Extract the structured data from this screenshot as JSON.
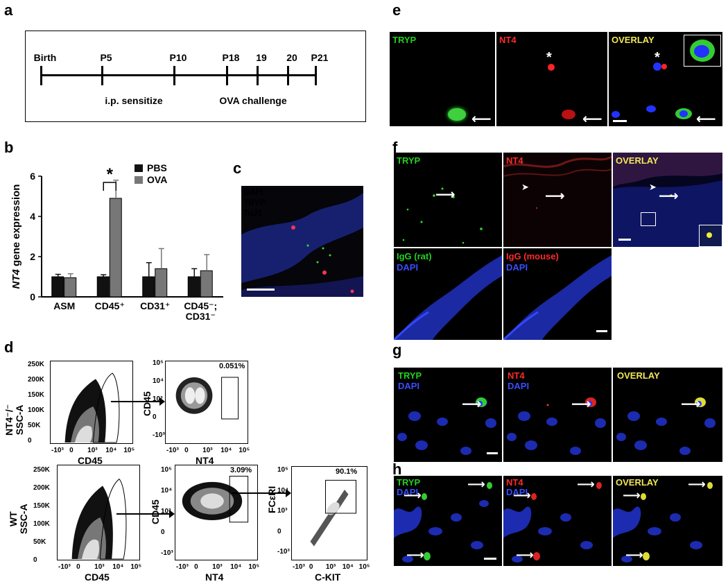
{
  "panels": {
    "a": "a",
    "b": "b",
    "c": "c",
    "d": "d",
    "e": "e",
    "f": "f",
    "g": "g",
    "h": "h"
  },
  "timeline": {
    "points": [
      {
        "label": "Birth",
        "pos": 0
      },
      {
        "label": "P5",
        "pos": 1
      },
      {
        "label": "P10",
        "pos": 2
      },
      {
        "label": "P18",
        "pos": 3
      },
      {
        "label": "19",
        "pos": 4
      },
      {
        "label": "20",
        "pos": 5
      },
      {
        "label": "P21",
        "pos": 6
      }
    ],
    "sensitize_label": "i.p. sensitize",
    "challenge_label": "OVA challenge"
  },
  "chart_data": {
    "type": "bar",
    "categories": [
      "ASM",
      "CD45+",
      "CD31+",
      "CD45-; CD31-"
    ],
    "category_display": [
      [
        "ASM"
      ],
      [
        "CD45⁺"
      ],
      [
        "CD31⁺"
      ],
      [
        "CD45⁻;",
        "CD31⁻"
      ]
    ],
    "ylabel": "NT4 gene expression",
    "ylabel_italic": "NT4",
    "ylabel_rest": " gene expression",
    "ylim": [
      0,
      6
    ],
    "yticks": [
      0,
      2,
      4,
      6
    ],
    "series": [
      {
        "name": "PBS",
        "color": "#111111",
        "values": [
          1.0,
          1.0,
          1.0,
          1.0
        ],
        "errors": [
          0.12,
          0.1,
          0.7,
          0.4
        ]
      },
      {
        "name": "OVA",
        "color": "#777777",
        "values": [
          0.95,
          4.9,
          1.4,
          1.3
        ],
        "errors": [
          0.2,
          0.9,
          1.0,
          0.8
        ]
      }
    ],
    "significance": {
      "category": "CD45+",
      "marker": "*"
    }
  },
  "panel_c": {
    "labels": [
      {
        "text": "DAPI",
        "color": "#3a4dff"
      },
      {
        "text": "TRYP",
        "color": "#ff3a5a"
      },
      {
        "text": "TuJ1",
        "color": "#22d022"
      }
    ]
  },
  "panel_d": {
    "top_row_label": "NT4-/- SSC-A",
    "top_row_label_display": [
      "NT4⁻/⁻",
      "SSC-A"
    ],
    "bottom_row_label_display": [
      "WT",
      "SSC-A"
    ],
    "ssc_ticks": [
      "250K",
      "200K",
      "150K",
      "100K",
      "50K",
      "0"
    ],
    "ssc_ticks_top": [
      "250K",
      "200K",
      "150K",
      "100K",
      "50K",
      "0"
    ],
    "log_ticks_x": [
      "-10³",
      "0",
      "10³",
      "10⁴",
      "10⁵"
    ],
    "log_ticks_y": [
      "10⁵",
      "10⁴",
      "10³",
      "0",
      "-10³"
    ],
    "x_cd45": "CD45",
    "x_nt4": "NT4",
    "y_cd45": "CD45",
    "x_ckit": "C-KIT",
    "y_fceri": "FCεRI",
    "pct_top": "0.051%",
    "pct_wt_nt4": "3.09%",
    "pct_wt_ckit": "90.1%"
  },
  "panel_e": {
    "tryp": "TRYP",
    "nt4": "NT4",
    "overlay": "OVERLAY",
    "star": "*"
  },
  "panel_f": {
    "tryp": "TRYP",
    "nt4": "NT4",
    "overlay": "OVERLAY",
    "igg_rat": "IgG (rat)",
    "igg_mouse": "IgG (mouse)",
    "dapi": "DAPI"
  },
  "panel_g": {
    "tryp": "TRYP",
    "nt4": "NT4",
    "overlay": "OVERLAY",
    "dapi": "DAPI"
  },
  "panel_h": {
    "tryp": "TRYP",
    "nt4": "NT4",
    "overlay": "OVERLAY",
    "dapi": "DAPI"
  },
  "colors": {
    "green": "#22d022",
    "red": "#ff2a2a",
    "yellow": "#f3e85a",
    "blue": "#3a4dff"
  }
}
